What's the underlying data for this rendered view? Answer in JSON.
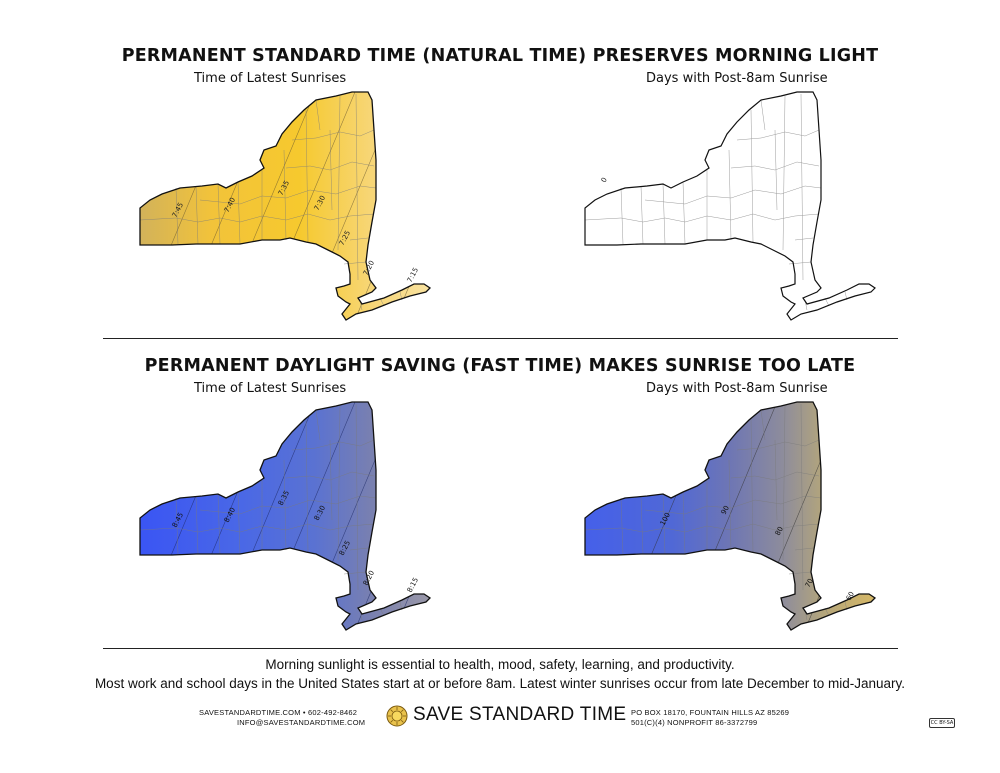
{
  "top": {
    "title": "PERMANENT STANDARD TIME (NATURAL TIME) PRESERVES MORNING LIGHT",
    "left_subtitle": "Time of Latest Sunrises",
    "right_subtitle": "Days with Post-8am Sunrise",
    "left_labels": [
      "7:45",
      "7:40",
      "7:35",
      "7:30",
      "7:25",
      "7:20",
      "7:15"
    ],
    "right_labels": [
      "0"
    ]
  },
  "bottom": {
    "title": "PERMANENT DAYLIGHT SAVING (FAST TIME) MAKES SUNRISE TOO LATE",
    "left_subtitle": "Time of Latest Sunrises",
    "right_subtitle": "Days with Post-8am Sunrise",
    "left_labels": [
      "8:45",
      "8:40",
      "8:35",
      "8:30",
      "8:25",
      "8:20",
      "8:15"
    ],
    "right_labels": [
      "100",
      "90",
      "80",
      "70",
      "60"
    ]
  },
  "footer": {
    "line1": "Morning sunlight is essential to health, mood, safety, learning, and productivity.",
    "line2": "Most work and school days in the United States start at or before 8am. Latest winter sunrises occur from late December to mid-January.",
    "contact_line1": "SAVESTANDARDTIME.COM • 602-492-8462",
    "contact_line2": "INFO@SAVESTANDARDTIME.COM",
    "brand": "SAVE STANDARD TIME",
    "address_line1": "PO BOX 18170, FOUNTAIN HILLS AZ 85269",
    "address_line2": "501(C)(4) NONPROFIT 86-3372799",
    "license_badge": "CC BY-SA"
  },
  "colors": {
    "standard_west": "#d2b25a",
    "standard_mid": "#f6c533",
    "standard_east": "#f7dd8c",
    "dst_west": "#3d5cf2",
    "dst_mid": "#4f6de0",
    "dst_east": "#8c8fa8",
    "days_high": "#4d68dc",
    "days_low": "#cbb26c"
  },
  "icons": [
    "sun-logo-icon",
    "creative-commons-icon"
  ]
}
